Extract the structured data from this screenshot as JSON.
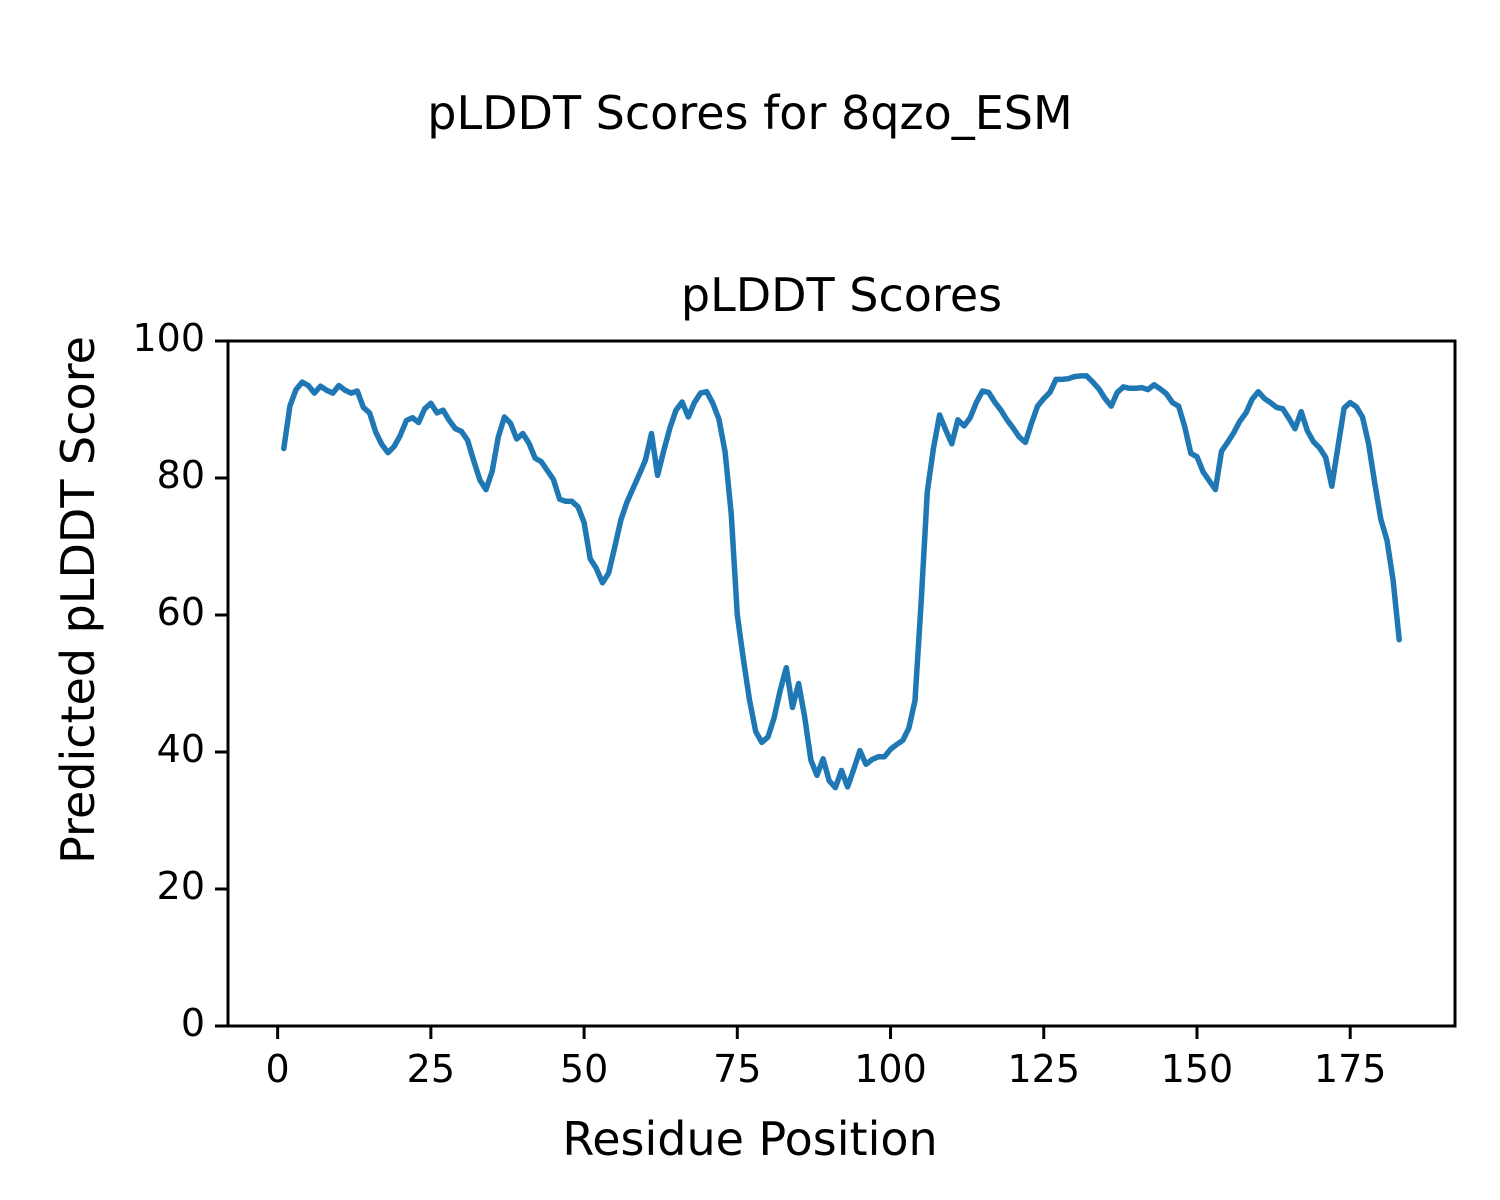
{
  "figure": {
    "suptitle": "pLDDT Scores for 8qzo_ESM",
    "supxlabel": "Residue Position",
    "supylabel": "Predicted pLDDT Score",
    "background_color": "#ffffff",
    "text_color": "#000000"
  },
  "chart_data": {
    "type": "line",
    "title": "pLDDT Scores",
    "xlabel": "Residue Position",
    "ylabel": "Predicted pLDDT Score",
    "line_color": "#1f77b4",
    "spine_color": "#000000",
    "grid": false,
    "legend": null,
    "xlim": [
      -8.1,
      192.1
    ],
    "ylim": [
      0,
      100
    ],
    "x_ticks": [
      0,
      25,
      50,
      75,
      100,
      125,
      150,
      175
    ],
    "y_ticks": [
      0,
      20,
      40,
      60,
      80,
      100
    ],
    "series": [
      {
        "name": "pLDDT",
        "x_start": 1,
        "x_step": 1,
        "values": [
          84.3,
          90.5,
          92.9,
          94.0,
          93.5,
          92.4,
          93.4,
          92.8,
          92.4,
          93.5,
          92.8,
          92.4,
          92.7,
          90.3,
          89.5,
          86.7,
          84.9,
          83.7,
          84.6,
          86.2,
          88.4,
          88.8,
          88.1,
          90.1,
          90.9,
          89.5,
          89.9,
          88.4,
          87.2,
          86.8,
          85.5,
          82.5,
          79.7,
          78.3,
          81.0,
          86.0,
          88.9,
          88.0,
          85.7,
          86.5,
          85.1,
          82.9,
          82.4,
          81.1,
          79.8,
          76.9,
          76.6,
          76.6,
          75.8,
          73.5,
          68.2,
          66.8,
          64.7,
          66.1,
          69.9,
          73.9,
          76.5,
          78.5,
          80.5,
          82.6,
          86.5,
          80.4,
          84.0,
          87.3,
          89.9,
          91.1,
          88.9,
          91.0,
          92.4,
          92.6,
          90.9,
          88.6,
          83.8,
          74.8,
          60.0,
          53.5,
          47.5,
          43.0,
          41.4,
          42.2,
          45.0,
          49.0,
          52.3,
          46.5,
          50.0,
          45.1,
          38.8,
          36.6,
          39.0,
          35.8,
          34.8,
          37.3,
          34.9,
          37.5,
          40.2,
          38.2,
          38.9,
          39.3,
          39.3,
          40.4,
          41.1,
          41.7,
          43.5,
          47.5,
          62.0,
          78.0,
          84.3,
          89.2,
          87.0,
          85.0,
          88.5,
          87.6,
          88.8,
          91.0,
          92.7,
          92.5,
          91.1,
          89.9,
          88.5,
          87.3,
          86.0,
          85.2,
          88.0,
          90.5,
          91.6,
          92.5,
          94.4,
          94.4,
          94.5,
          94.8,
          94.9,
          94.9,
          94.0,
          93.0,
          91.6,
          90.5,
          92.5,
          93.3,
          93.1,
          93.1,
          93.2,
          92.9,
          93.6,
          93.0,
          92.3,
          91.0,
          90.5,
          87.5,
          83.6,
          83.1,
          80.9,
          79.6,
          78.3,
          83.9,
          85.2,
          86.6,
          88.3,
          89.5,
          91.5,
          92.6,
          91.6,
          91.0,
          90.3,
          90.1,
          88.7,
          87.2,
          89.7,
          86.9,
          85.3,
          84.4,
          83.0,
          78.8,
          84.5,
          90.2,
          91.0,
          90.4,
          88.9,
          85.0,
          79.3,
          74.0,
          70.9,
          65.1,
          56.4
        ]
      }
    ]
  }
}
